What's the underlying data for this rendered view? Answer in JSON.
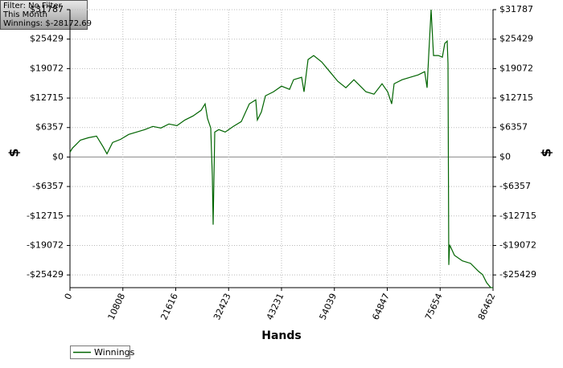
{
  "info_box": {
    "lines": [
      "Filter: No Filter",
      "This Month",
      "Winnings: $-28172.69"
    ]
  },
  "chart_data": {
    "type": "line",
    "x_label": "Hands",
    "y_label": "$",
    "xlim": [
      0,
      86462
    ],
    "xticks": [
      0,
      10808,
      21616,
      32423,
      43231,
      54039,
      64847,
      75654,
      86462
    ],
    "ylim": [
      -28173,
      31787
    ],
    "yticks": [
      {
        "value": 31787,
        "label": "$31787"
      },
      {
        "value": 25429,
        "label": "$25429"
      },
      {
        "value": 19072,
        "label": "$19072"
      },
      {
        "value": 12715,
        "label": "$12715"
      },
      {
        "value": 6357,
        "label": "$6357"
      },
      {
        "value": 0,
        "label": "$0"
      },
      {
        "value": -6357,
        "label": "-$6357"
      },
      {
        "value": -12715,
        "label": "-$12715"
      },
      {
        "value": -19072,
        "label": "-$19072"
      },
      {
        "value": -25429,
        "label": "-$25429"
      }
    ],
    "grid": true,
    "legend": "bottom-left",
    "x": [
      0,
      493,
      1315,
      2137,
      3781,
      5425,
      6740,
      7561,
      8712,
      10356,
      12000,
      13644,
      15287,
      16931,
      18575,
      20219,
      21863,
      23507,
      25150,
      26794,
      27616,
      28109,
      28767,
      29096,
      29260,
      29589,
      30411,
      31726,
      33370,
      35013,
      36657,
      37972,
      38301,
      39123,
      39945,
      41589,
      43232,
      44876,
      45698,
      47342,
      47835,
      48657,
      49808,
      51452,
      53095,
      54739,
      56383,
      58027,
      59670,
      60492,
      62136,
      63780,
      64930,
      65752,
      66245,
      67889,
      69533,
      71176,
      72491,
      72984,
      73313,
      73807,
      74300,
      75286,
      76108,
      76601,
      77094,
      77259,
      77423,
      77588,
      78574,
      80218,
      81862,
      83506,
      84328,
      85150,
      85972,
      86462
    ],
    "series": [
      {
        "name": "Winnings",
        "color": "#006400",
        "values": [
          1042,
          1911,
          2779,
          3648,
          4169,
          4516,
          2258,
          695,
          3127,
          3821,
          4864,
          5385,
          5906,
          6601,
          6253,
          7122,
          6774,
          7990,
          8859,
          10075,
          11464,
          8338,
          6253,
          -4169,
          -14591,
          5385,
          5906,
          5385,
          6601,
          7643,
          11464,
          12333,
          7990,
          9727,
          13202,
          14070,
          15286,
          14591,
          16675,
          17196,
          14070,
          21018,
          21886,
          20497,
          18412,
          16328,
          14938,
          16675,
          14938,
          14070,
          13549,
          15807,
          14070,
          11464,
          15807,
          16675,
          17196,
          17718,
          18412,
          14938,
          21886,
          31787,
          21886,
          21886,
          21539,
          24492,
          25013,
          20150,
          -23276,
          -18933,
          -21191,
          -22407,
          -22928,
          -24665,
          -25360,
          -27097,
          -28139,
          -28173
        ]
      }
    ]
  }
}
